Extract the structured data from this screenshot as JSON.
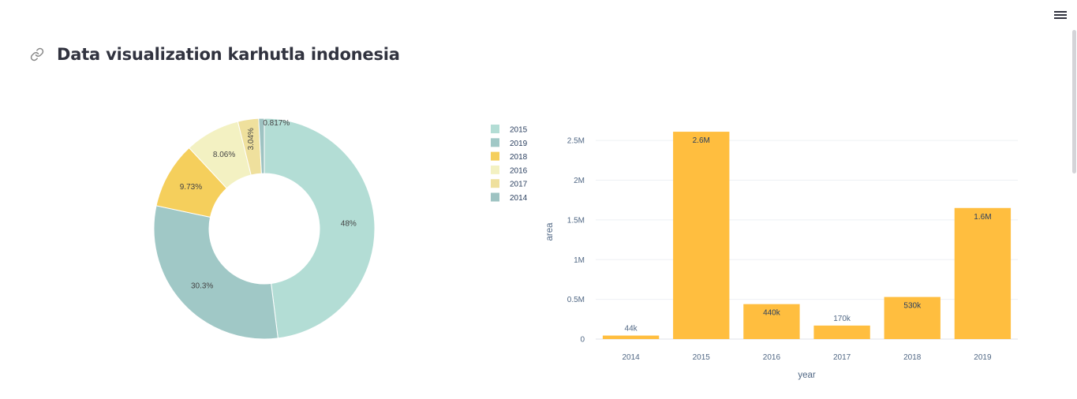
{
  "header": {
    "title": "Data visualization karhutla indonesia",
    "link_icon": "link-icon",
    "menu_icon": "hamburger-menu-icon"
  },
  "chart_data": [
    {
      "type": "pie",
      "hole": true,
      "legend_position": "right",
      "slices": [
        {
          "label": "2015",
          "percent": 48,
          "text": "48%",
          "color": "#b3ddd5"
        },
        {
          "label": "2019",
          "percent": 30.3,
          "text": "30.3%",
          "color": "#a0c8c6"
        },
        {
          "label": "2018",
          "percent": 9.73,
          "text": "9.73%",
          "color": "#f5cf5c"
        },
        {
          "label": "2016",
          "percent": 8.06,
          "text": "8.06%",
          "color": "#f3f1c2"
        },
        {
          "label": "2017",
          "percent": 3.04,
          "text": "3.04%",
          "color": "#efe09d"
        },
        {
          "label": "2014",
          "percent": 0.817,
          "text": "0.817%",
          "color": "#9ec3c2"
        }
      ]
    },
    {
      "type": "bar",
      "xlabel": "year",
      "ylabel": "area",
      "categories": [
        "2014",
        "2015",
        "2016",
        "2017",
        "2018",
        "2019"
      ],
      "values": [
        44000,
        2610000,
        440000,
        170000,
        530000,
        1650000
      ],
      "data_labels": [
        "44k",
        "2.6M",
        "440k",
        "170k",
        "530k",
        "1.6M"
      ],
      "ylim": [
        0,
        2700000
      ],
      "yticks": [
        0,
        500000,
        1000000,
        1500000,
        2000000,
        2500000
      ],
      "ytick_labels": [
        "0",
        "0.5M",
        "1M",
        "1.5M",
        "2M",
        "2.5M"
      ],
      "bar_color": "#ffbe3f",
      "grid": true
    }
  ]
}
